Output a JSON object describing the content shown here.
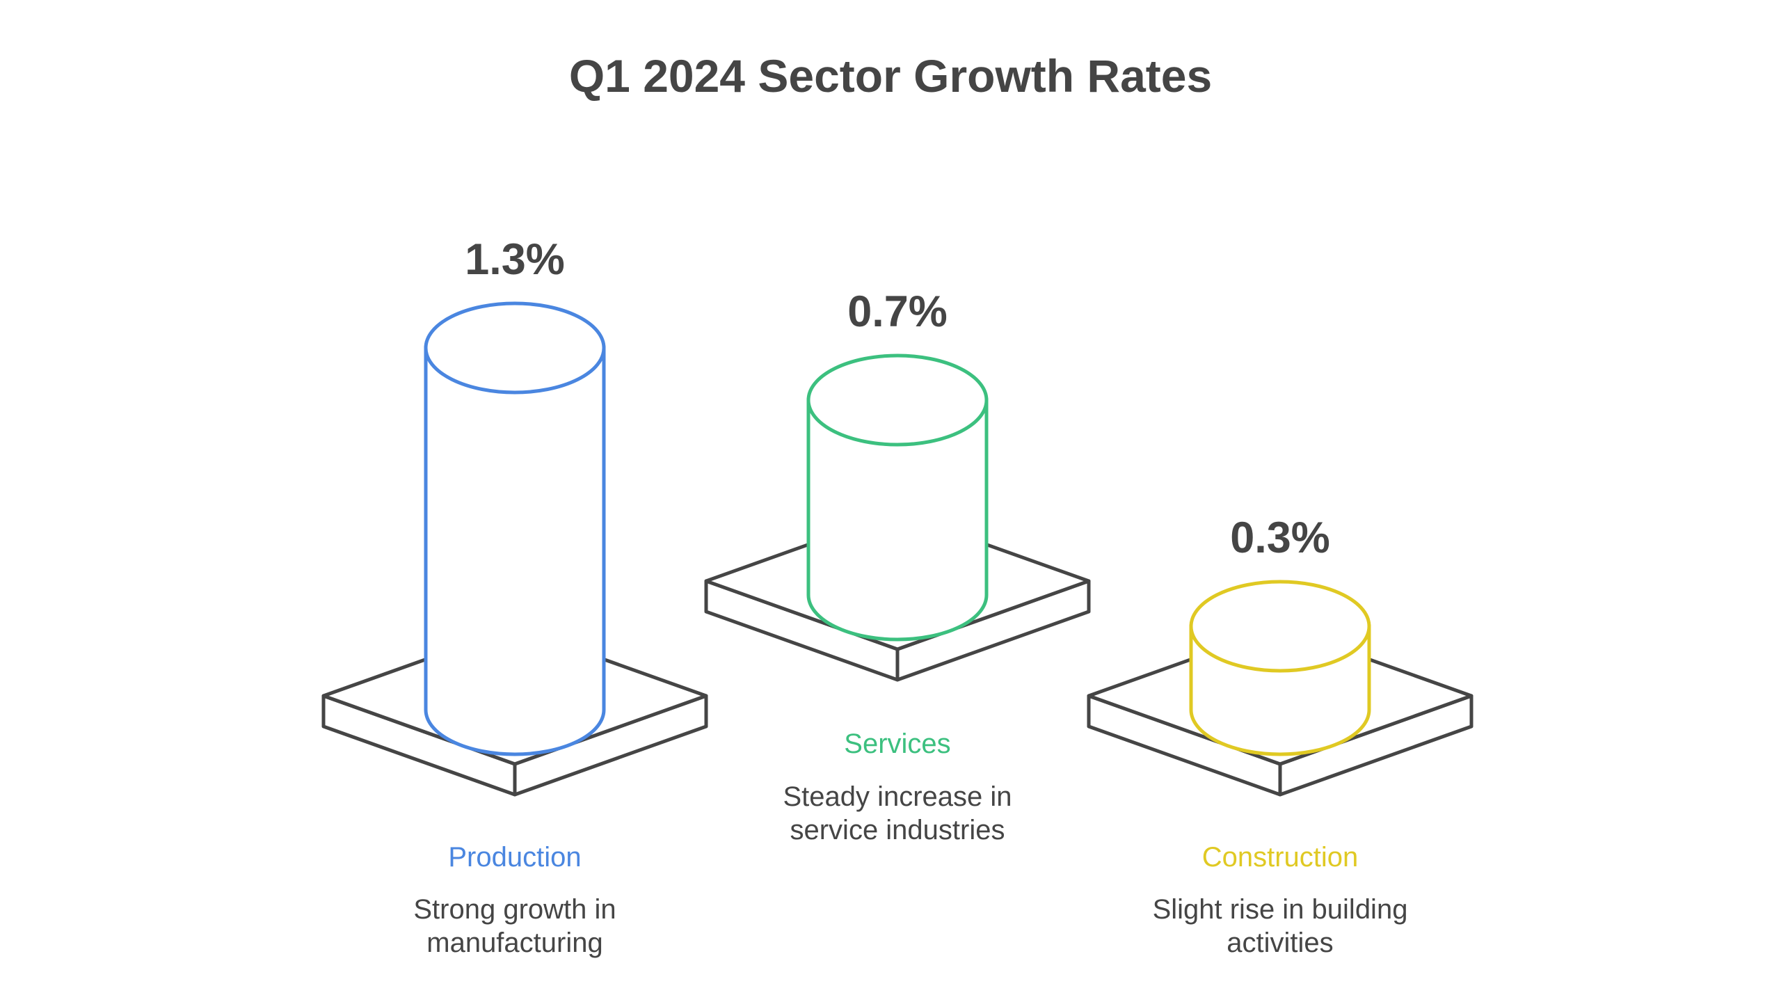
{
  "chart_data": {
    "type": "bar",
    "title": "Q1 2024 Sector Growth Rates",
    "xlabel": "",
    "ylabel": "",
    "unit": "%",
    "categories": [
      "Production",
      "Services",
      "Construction"
    ],
    "values": [
      1.3,
      0.7,
      0.3
    ],
    "value_labels": [
      "1.3%",
      "0.7%",
      "0.3%"
    ],
    "descriptions": [
      [
        "Strong growth in",
        "manufacturing"
      ],
      [
        "Steady increase in",
        "service industries"
      ],
      [
        "Slight rise in building",
        "activities"
      ]
    ],
    "colors": [
      "#4A86E0",
      "#3CC07F",
      "#E0C923"
    ],
    "grid": false,
    "legend": "none"
  }
}
